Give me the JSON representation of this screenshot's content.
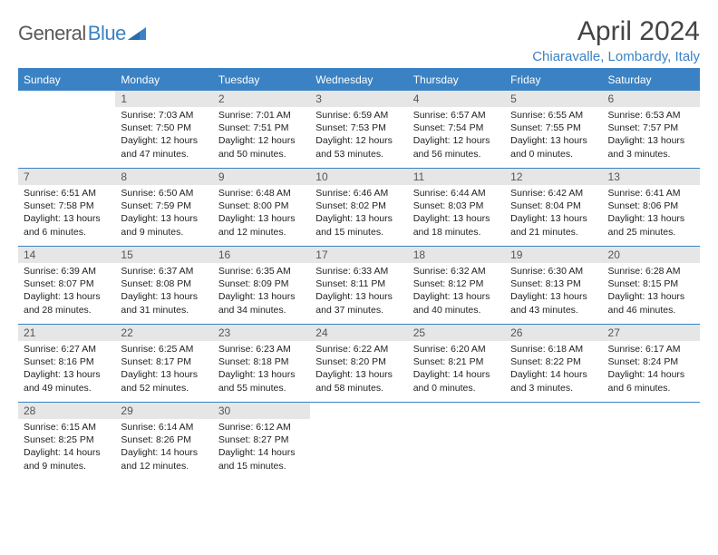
{
  "brand": {
    "name1": "General",
    "name2": "Blue"
  },
  "title": "April 2024",
  "location": "Chiaravalle, Lombardy, Italy",
  "colors": {
    "accent": "#3a82c4",
    "dayHeaderBg": "#e6e6e6",
    "text": "#222222"
  },
  "weekdays": [
    "Sunday",
    "Monday",
    "Tuesday",
    "Wednesday",
    "Thursday",
    "Friday",
    "Saturday"
  ],
  "grid": {
    "columns": 7,
    "rows": 5,
    "startOffset": 1,
    "daysInMonth": 30
  },
  "days": [
    {
      "n": 1,
      "sunrise": "7:03 AM",
      "sunset": "7:50 PM",
      "daylight": "12 hours and 47 minutes."
    },
    {
      "n": 2,
      "sunrise": "7:01 AM",
      "sunset": "7:51 PM",
      "daylight": "12 hours and 50 minutes."
    },
    {
      "n": 3,
      "sunrise": "6:59 AM",
      "sunset": "7:53 PM",
      "daylight": "12 hours and 53 minutes."
    },
    {
      "n": 4,
      "sunrise": "6:57 AM",
      "sunset": "7:54 PM",
      "daylight": "12 hours and 56 minutes."
    },
    {
      "n": 5,
      "sunrise": "6:55 AM",
      "sunset": "7:55 PM",
      "daylight": "13 hours and 0 minutes."
    },
    {
      "n": 6,
      "sunrise": "6:53 AM",
      "sunset": "7:57 PM",
      "daylight": "13 hours and 3 minutes."
    },
    {
      "n": 7,
      "sunrise": "6:51 AM",
      "sunset": "7:58 PM",
      "daylight": "13 hours and 6 minutes."
    },
    {
      "n": 8,
      "sunrise": "6:50 AM",
      "sunset": "7:59 PM",
      "daylight": "13 hours and 9 minutes."
    },
    {
      "n": 9,
      "sunrise": "6:48 AM",
      "sunset": "8:00 PM",
      "daylight": "13 hours and 12 minutes."
    },
    {
      "n": 10,
      "sunrise": "6:46 AM",
      "sunset": "8:02 PM",
      "daylight": "13 hours and 15 minutes."
    },
    {
      "n": 11,
      "sunrise": "6:44 AM",
      "sunset": "8:03 PM",
      "daylight": "13 hours and 18 minutes."
    },
    {
      "n": 12,
      "sunrise": "6:42 AM",
      "sunset": "8:04 PM",
      "daylight": "13 hours and 21 minutes."
    },
    {
      "n": 13,
      "sunrise": "6:41 AM",
      "sunset": "8:06 PM",
      "daylight": "13 hours and 25 minutes."
    },
    {
      "n": 14,
      "sunrise": "6:39 AM",
      "sunset": "8:07 PM",
      "daylight": "13 hours and 28 minutes."
    },
    {
      "n": 15,
      "sunrise": "6:37 AM",
      "sunset": "8:08 PM",
      "daylight": "13 hours and 31 minutes."
    },
    {
      "n": 16,
      "sunrise": "6:35 AM",
      "sunset": "8:09 PM",
      "daylight": "13 hours and 34 minutes."
    },
    {
      "n": 17,
      "sunrise": "6:33 AM",
      "sunset": "8:11 PM",
      "daylight": "13 hours and 37 minutes."
    },
    {
      "n": 18,
      "sunrise": "6:32 AM",
      "sunset": "8:12 PM",
      "daylight": "13 hours and 40 minutes."
    },
    {
      "n": 19,
      "sunrise": "6:30 AM",
      "sunset": "8:13 PM",
      "daylight": "13 hours and 43 minutes."
    },
    {
      "n": 20,
      "sunrise": "6:28 AM",
      "sunset": "8:15 PM",
      "daylight": "13 hours and 46 minutes."
    },
    {
      "n": 21,
      "sunrise": "6:27 AM",
      "sunset": "8:16 PM",
      "daylight": "13 hours and 49 minutes."
    },
    {
      "n": 22,
      "sunrise": "6:25 AM",
      "sunset": "8:17 PM",
      "daylight": "13 hours and 52 minutes."
    },
    {
      "n": 23,
      "sunrise": "6:23 AM",
      "sunset": "8:18 PM",
      "daylight": "13 hours and 55 minutes."
    },
    {
      "n": 24,
      "sunrise": "6:22 AM",
      "sunset": "8:20 PM",
      "daylight": "13 hours and 58 minutes."
    },
    {
      "n": 25,
      "sunrise": "6:20 AM",
      "sunset": "8:21 PM",
      "daylight": "14 hours and 0 minutes."
    },
    {
      "n": 26,
      "sunrise": "6:18 AM",
      "sunset": "8:22 PM",
      "daylight": "14 hours and 3 minutes."
    },
    {
      "n": 27,
      "sunrise": "6:17 AM",
      "sunset": "8:24 PM",
      "daylight": "14 hours and 6 minutes."
    },
    {
      "n": 28,
      "sunrise": "6:15 AM",
      "sunset": "8:25 PM",
      "daylight": "14 hours and 9 minutes."
    },
    {
      "n": 29,
      "sunrise": "6:14 AM",
      "sunset": "8:26 PM",
      "daylight": "14 hours and 12 minutes."
    },
    {
      "n": 30,
      "sunrise": "6:12 AM",
      "sunset": "8:27 PM",
      "daylight": "14 hours and 15 minutes."
    }
  ],
  "labels": {
    "sunrise": "Sunrise:",
    "sunset": "Sunset:",
    "daylight": "Daylight:"
  }
}
